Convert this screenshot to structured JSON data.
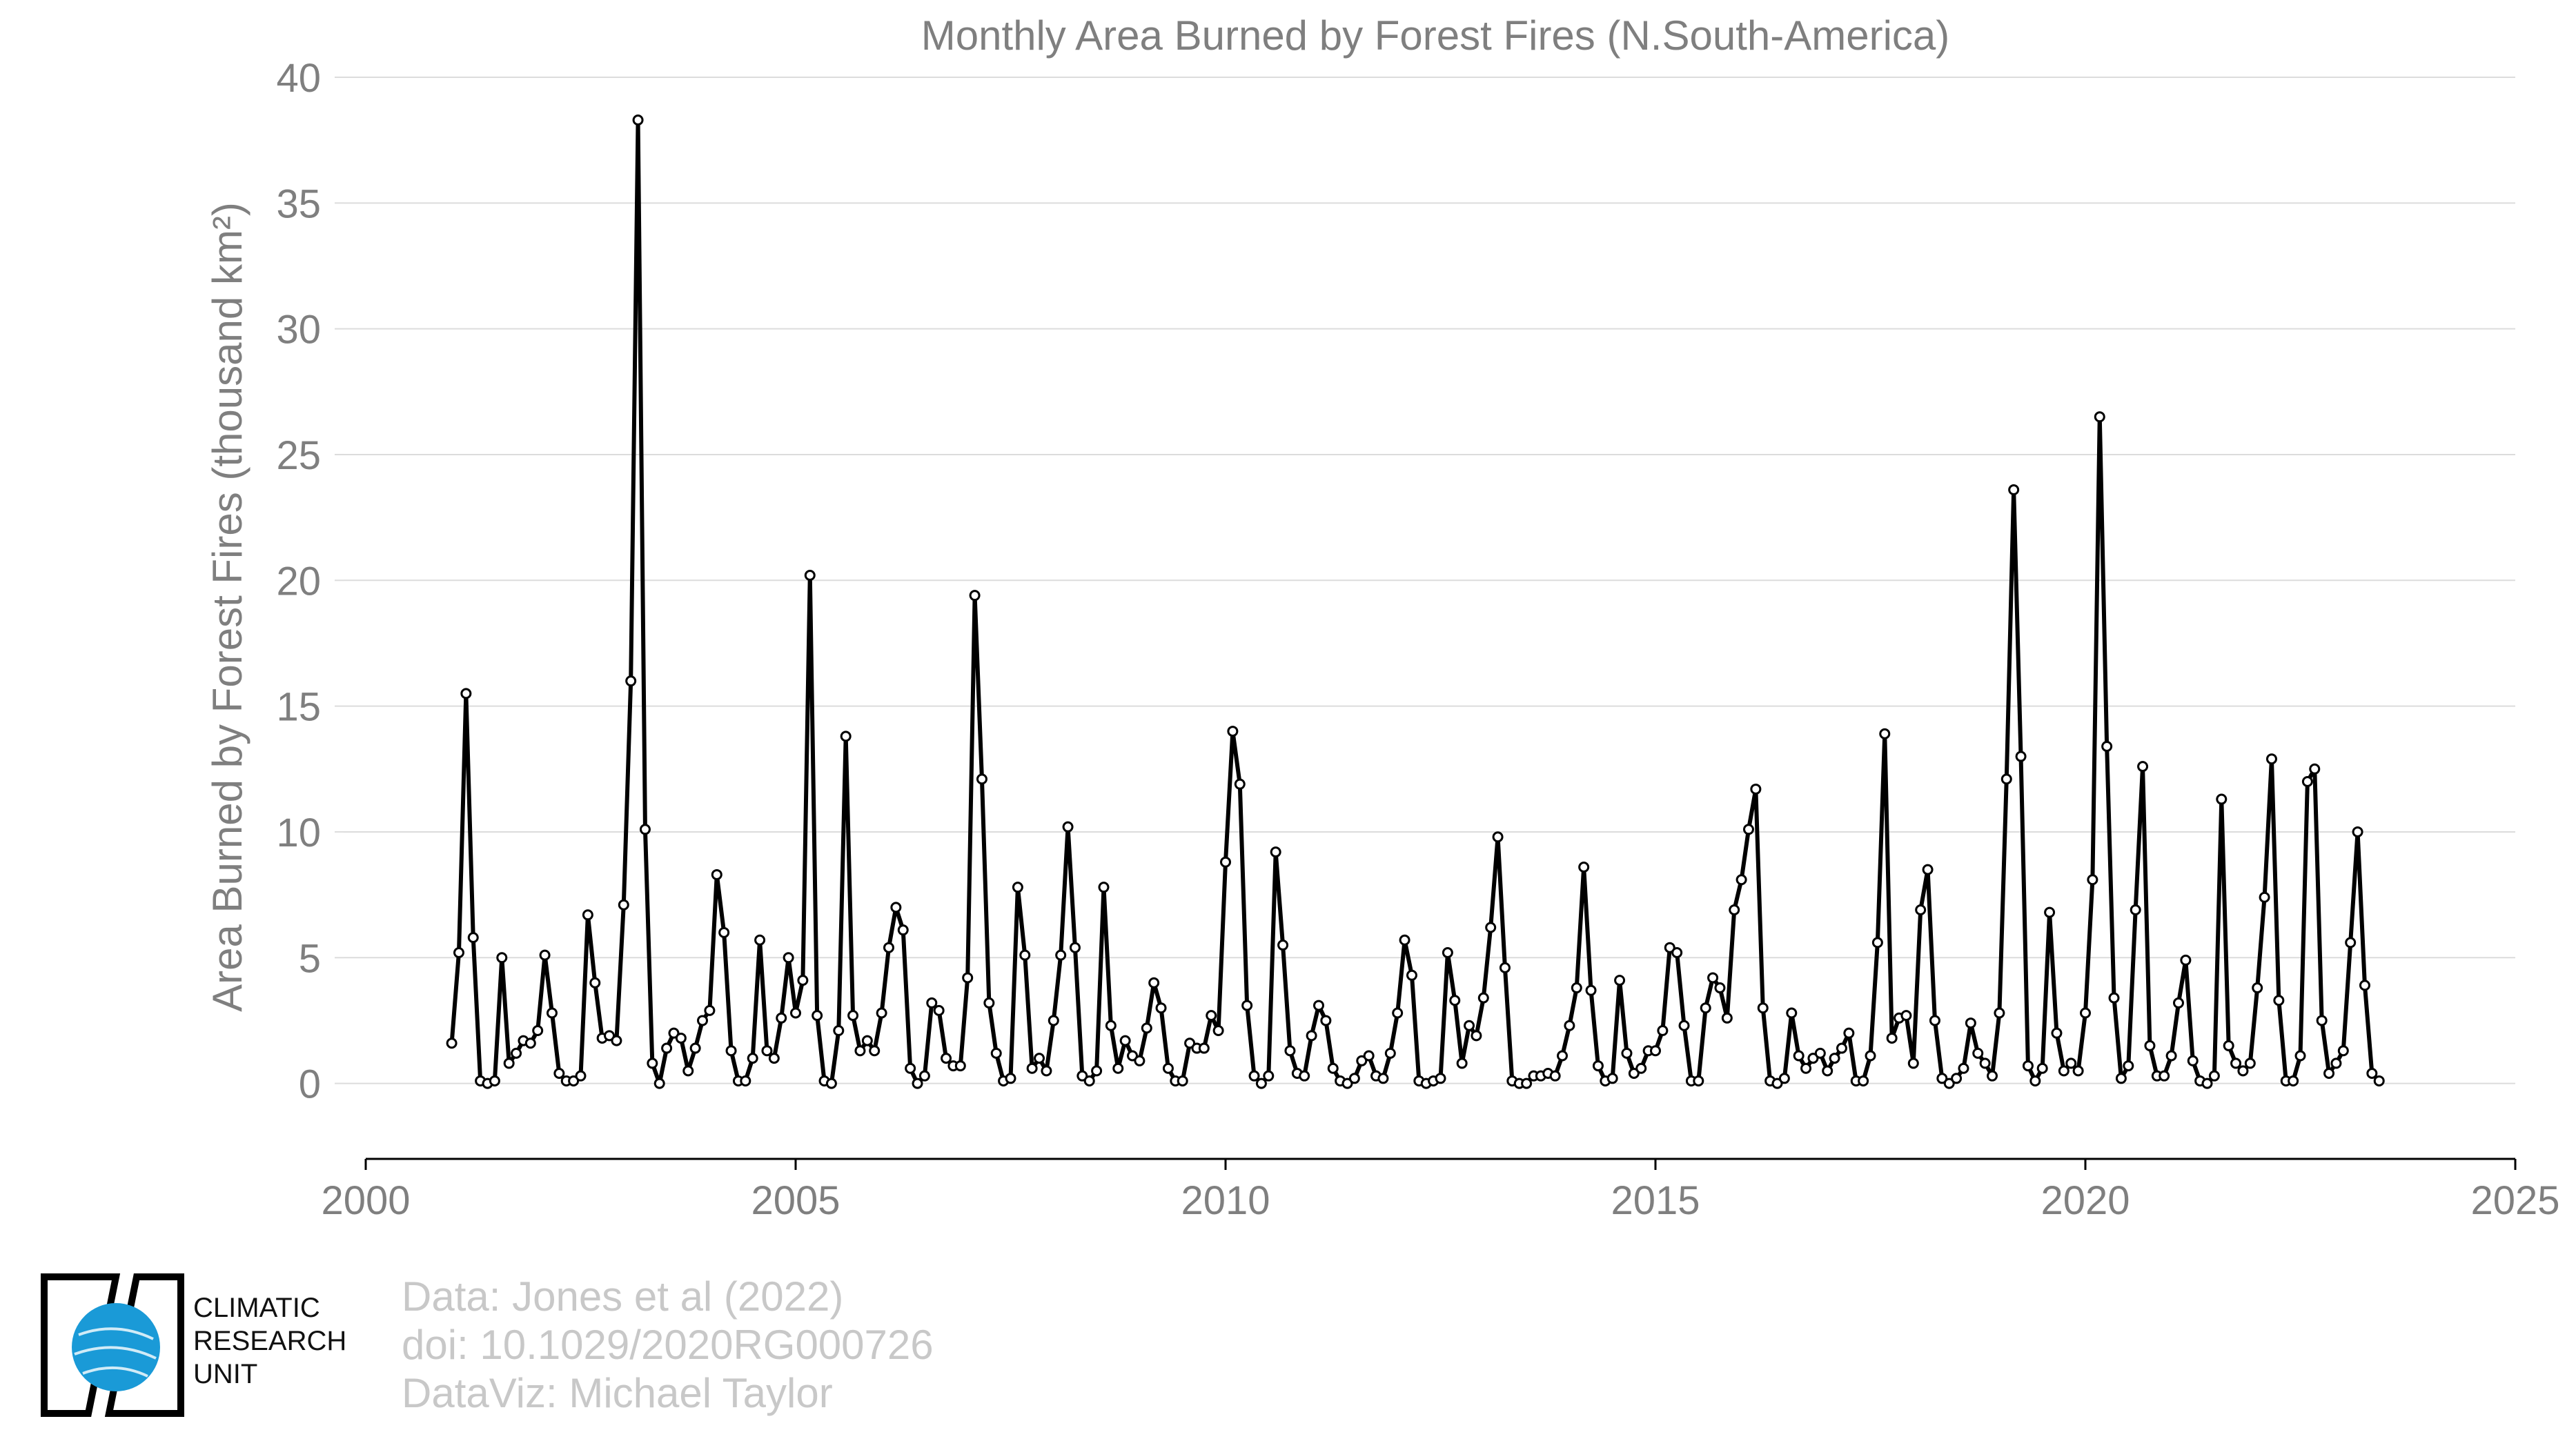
{
  "chart_data": {
    "type": "line",
    "title": "Monthly Area Burned by Forest Fires (N.South-America)",
    "xlabel": "",
    "ylabel": "Area Burned by Forest Fires (thousand km²)",
    "xlim": [
      2000,
      2025
    ],
    "ylim": [
      -3,
      40
    ],
    "xticks": [
      2000,
      2005,
      2010,
      2015,
      2020,
      2025
    ],
    "yticks": [
      0,
      5,
      10,
      15,
      20,
      25,
      30,
      35,
      40
    ],
    "grid": "horizontal",
    "start_year": 2001,
    "start_month": 1,
    "series": [
      {
        "color": "#000000",
        "values": [
          1.6,
          5.2,
          15.5,
          5.8,
          0.1,
          0.0,
          0.1,
          5.0,
          0.8,
          1.2,
          1.7,
          1.6,
          2.1,
          5.1,
          2.8,
          0.4,
          0.1,
          0.1,
          0.3,
          6.7,
          4.0,
          1.8,
          1.9,
          1.7,
          7.1,
          16.0,
          38.3,
          10.1,
          0.8,
          0.0,
          1.4,
          2.0,
          1.8,
          0.5,
          1.4,
          2.5,
          2.9,
          8.3,
          6.0,
          1.3,
          0.1,
          0.1,
          1.0,
          5.7,
          1.3,
          1.0,
          2.6,
          5.0,
          2.8,
          4.1,
          20.2,
          2.7,
          0.1,
          0.0,
          2.1,
          13.8,
          2.7,
          1.3,
          1.7,
          1.3,
          2.8,
          5.4,
          7.0,
          6.1,
          0.6,
          0.0,
          0.3,
          3.2,
          2.9,
          1.0,
          0.7,
          0.7,
          4.2,
          19.4,
          12.1,
          3.2,
          1.2,
          0.1,
          0.2,
          7.8,
          5.1,
          0.6,
          1.0,
          0.5,
          2.5,
          5.1,
          10.2,
          5.4,
          0.3,
          0.1,
          0.5,
          7.8,
          2.3,
          0.6,
          1.7,
          1.1,
          0.9,
          2.2,
          4.0,
          3.0,
          0.6,
          0.1,
          0.1,
          1.6,
          1.4,
          1.4,
          2.7,
          2.1,
          8.8,
          14.0,
          11.9,
          3.1,
          0.3,
          0.0,
          0.3,
          9.2,
          5.5,
          1.3,
          0.4,
          0.3,
          1.9,
          3.1,
          2.5,
          0.6,
          0.1,
          0.0,
          0.2,
          0.9,
          1.1,
          0.3,
          0.2,
          1.2,
          2.8,
          5.7,
          4.3,
          0.1,
          0.0,
          0.1,
          0.2,
          5.2,
          3.3,
          0.8,
          2.3,
          1.9,
          3.4,
          6.2,
          9.8,
          4.6,
          0.1,
          0.0,
          0.0,
          0.3,
          0.3,
          0.4,
          0.3,
          1.1,
          2.3,
          3.8,
          8.6,
          3.7,
          0.7,
          0.1,
          0.2,
          4.1,
          1.2,
          0.4,
          0.6,
          1.3,
          1.3,
          2.1,
          5.4,
          5.2,
          2.3,
          0.1,
          0.1,
          3.0,
          4.2,
          3.8,
          2.6,
          6.9,
          8.1,
          10.1,
          11.7,
          3.0,
          0.1,
          0.0,
          0.2,
          2.8,
          1.1,
          0.6,
          1.0,
          1.2,
          0.5,
          1.0,
          1.4,
          2.0,
          0.1,
          0.1,
          1.1,
          5.6,
          13.9,
          1.8,
          2.6,
          2.7,
          0.8,
          6.9,
          8.5,
          2.5,
          0.2,
          0.0,
          0.2,
          0.6,
          2.4,
          1.2,
          0.8,
          0.3,
          2.8,
          12.1,
          23.6,
          13.0,
          0.7,
          0.1,
          0.6,
          6.8,
          2.0,
          0.5,
          0.8,
          0.5,
          2.8,
          8.1,
          26.5,
          13.4,
          3.4,
          0.2,
          0.7,
          6.9,
          12.6,
          1.5,
          0.3,
          0.3,
          1.1,
          3.2,
          4.9,
          0.9,
          0.1,
          0.0,
          0.3,
          11.3,
          1.5,
          0.8,
          0.5,
          0.8,
          3.8,
          7.4,
          12.9,
          3.3,
          0.1,
          0.1,
          1.1,
          12.0,
          12.5,
          2.5,
          0.4,
          0.8,
          1.3,
          5.6,
          10.0,
          3.9,
          0.4,
          0.1
        ]
      }
    ]
  },
  "credits": {
    "line1": "Data: Jones et al (2022)",
    "line2": "doi: 10.1029/2020RG000726",
    "line3": "DataViz: Michael Taylor"
  },
  "logo": {
    "line1": "CLIMATIC",
    "line2": "RESEARCH",
    "line3": "UNIT",
    "color": "#1a9ad7"
  },
  "colors": {
    "title": "#7f7f7f",
    "axis_text": "#7f7f7f",
    "grid": "#dcdcdc",
    "axis_line": "#000000",
    "line": "#000000"
  }
}
